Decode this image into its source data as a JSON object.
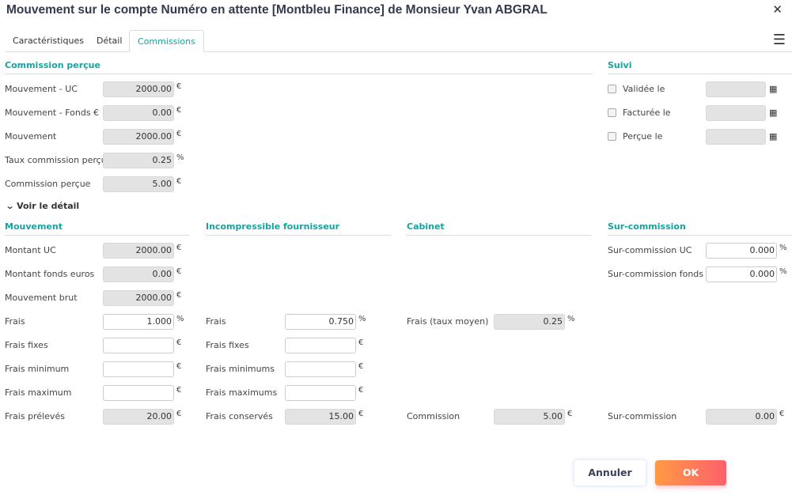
{
  "title": "Mouvement sur le compte Numéro en attente [Montbleu Finance] de Monsieur Yvan ABGRAL",
  "icons": {
    "close": "close-icon",
    "menu": "hamburger-menu-icon",
    "calendar": "calendar-icon",
    "toggle": "chevron-down-icon"
  },
  "tabs": [
    {
      "label": "Caractéristiques",
      "active": false
    },
    {
      "label": "Détail",
      "active": false
    },
    {
      "label": "Commissions",
      "active": true
    }
  ],
  "commission_percue": {
    "title": "Commission perçue",
    "fields": [
      {
        "label": "Mouvement - UC",
        "value": "2000.00",
        "unit": "€",
        "readonly": true
      },
      {
        "label": "Mouvement - Fonds €",
        "value": "0.00",
        "unit": "€",
        "readonly": true
      },
      {
        "label": "Mouvement",
        "value": "2000.00",
        "unit": "€",
        "readonly": true
      },
      {
        "label": "Taux commission perçue",
        "value": "0.25",
        "unit": "%",
        "readonly": true
      },
      {
        "label": "Commission perçue",
        "value": "5.00",
        "unit": "€",
        "readonly": true
      }
    ]
  },
  "suivi": {
    "title": "Suivi",
    "fields": [
      {
        "label": "Validée le",
        "checked": false,
        "value": ""
      },
      {
        "label": "Facturée le",
        "checked": false,
        "value": ""
      },
      {
        "label": "Perçue le",
        "checked": false,
        "value": ""
      }
    ]
  },
  "toggle_label": "Voir le détail",
  "columns": [
    {
      "key": "mouvement",
      "title": "Mouvement",
      "fields": [
        {
          "label": "Montant UC",
          "value": "2000.00",
          "unit": "€",
          "readonly": true
        },
        {
          "label": "Montant fonds euros",
          "value": "0.00",
          "unit": "€",
          "readonly": true
        },
        {
          "label": "Mouvement brut",
          "value": "2000.00",
          "unit": "€",
          "readonly": true
        },
        {
          "label": "Frais",
          "value": "1.000",
          "unit": "%",
          "readonly": false
        },
        {
          "label": "Frais fixes",
          "value": "",
          "unit": "€",
          "readonly": false
        },
        {
          "label": "Frais minimum",
          "value": "",
          "unit": "€",
          "readonly": false
        },
        {
          "label": "Frais maximum",
          "value": "",
          "unit": "€",
          "readonly": false
        },
        {
          "label": "Frais prélevés",
          "value": "20.00",
          "unit": "€",
          "readonly": true
        }
      ]
    },
    {
      "key": "incompressible",
      "title": "Incompressible fournisseur",
      "fields": [
        {
          "label": "Frais",
          "value": "0.750",
          "unit": "%",
          "readonly": false
        },
        {
          "label": "Frais fixes",
          "value": "",
          "unit": "€",
          "readonly": false
        },
        {
          "label": "Frais minimums",
          "value": "",
          "unit": "€",
          "readonly": false
        },
        {
          "label": "Frais maximums",
          "value": "",
          "unit": "€",
          "readonly": false
        },
        {
          "label": "Frais conservés",
          "value": "15.00",
          "unit": "€",
          "readonly": true
        }
      ]
    },
    {
      "key": "cabinet",
      "title": "Cabinet",
      "fields": [
        {
          "label": "Frais (taux moyen)",
          "value": "0.25",
          "unit": "%",
          "readonly": true
        },
        {
          "label": "Commission",
          "value": "5.00",
          "unit": "€",
          "readonly": true
        }
      ]
    },
    {
      "key": "sur",
      "title": "Sur-commission",
      "fields": [
        {
          "label": "Sur-commission UC",
          "value": "0.000",
          "unit": "%",
          "readonly": false
        },
        {
          "label": "Sur-commission fonds €",
          "value": "0.000",
          "unit": "%",
          "readonly": false
        },
        {
          "label": "Sur-commission",
          "value": "0.00",
          "unit": "€",
          "readonly": true
        }
      ]
    }
  ],
  "buttons": {
    "cancel": "Annuler",
    "ok": "OK"
  }
}
